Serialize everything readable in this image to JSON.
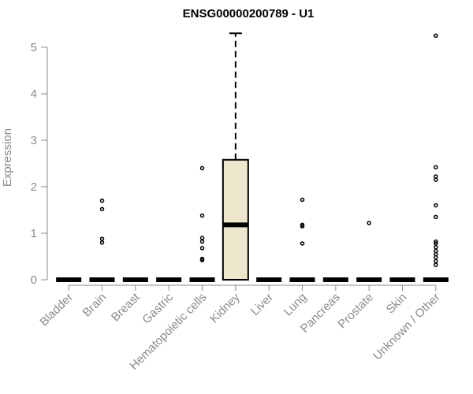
{
  "chart_data": {
    "type": "box",
    "title": "ENSG00000200789 - U1",
    "xlabel": "",
    "ylabel": "Expression",
    "ylim": [
      0,
      5.3
    ],
    "yticks": [
      "0",
      "1",
      "2",
      "3",
      "4",
      "5"
    ],
    "grid": false,
    "legend": "none",
    "box_fill": "#ede6cc",
    "categories": [
      "Bladder",
      "Brain",
      "Breast",
      "Gastric",
      "Hematopoietic cells",
      "Kidney",
      "Liver",
      "Lung",
      "Pancreas",
      "Prostate",
      "Skin",
      "Unknown / Other"
    ],
    "boxes": [
      {
        "min": 0,
        "q1": 0,
        "median": 0,
        "q3": 0,
        "max": 0,
        "outliers": []
      },
      {
        "min": 0,
        "q1": 0,
        "median": 0,
        "q3": 0,
        "max": 0,
        "outliers": [
          0.8,
          0.88,
          1.52,
          1.7
        ]
      },
      {
        "min": 0,
        "q1": 0,
        "median": 0,
        "q3": 0,
        "max": 0,
        "outliers": []
      },
      {
        "min": 0,
        "q1": 0,
        "median": 0,
        "q3": 0,
        "max": 0,
        "outliers": []
      },
      {
        "min": 0,
        "q1": 0,
        "median": 0,
        "q3": 0,
        "max": 0,
        "outliers": [
          0.42,
          0.45,
          0.68,
          0.82,
          0.9,
          1.38,
          2.4
        ]
      },
      {
        "min": 0,
        "q1": 0,
        "median": 1.18,
        "q3": 2.58,
        "max": 5.3,
        "outliers": []
      },
      {
        "min": 0,
        "q1": 0,
        "median": 0,
        "q3": 0,
        "max": 0,
        "outliers": []
      },
      {
        "min": 0,
        "q1": 0,
        "median": 0,
        "q3": 0,
        "max": 0,
        "outliers": [
          0.78,
          1.15,
          1.18,
          1.72
        ]
      },
      {
        "min": 0,
        "q1": 0,
        "median": 0,
        "q3": 0,
        "max": 0,
        "outliers": []
      },
      {
        "min": 0,
        "q1": 0,
        "median": 0,
        "q3": 0,
        "max": 0,
        "outliers": [
          1.22
        ]
      },
      {
        "min": 0,
        "q1": 0,
        "median": 0,
        "q3": 0,
        "max": 0,
        "outliers": []
      },
      {
        "min": 0,
        "q1": 0,
        "median": 0,
        "q3": 0,
        "max": 0,
        "outliers": [
          0.32,
          0.4,
          0.48,
          0.55,
          0.62,
          0.7,
          0.78,
          0.82,
          1.35,
          1.6,
          2.15,
          2.22,
          2.42,
          5.25
        ]
      }
    ]
  }
}
